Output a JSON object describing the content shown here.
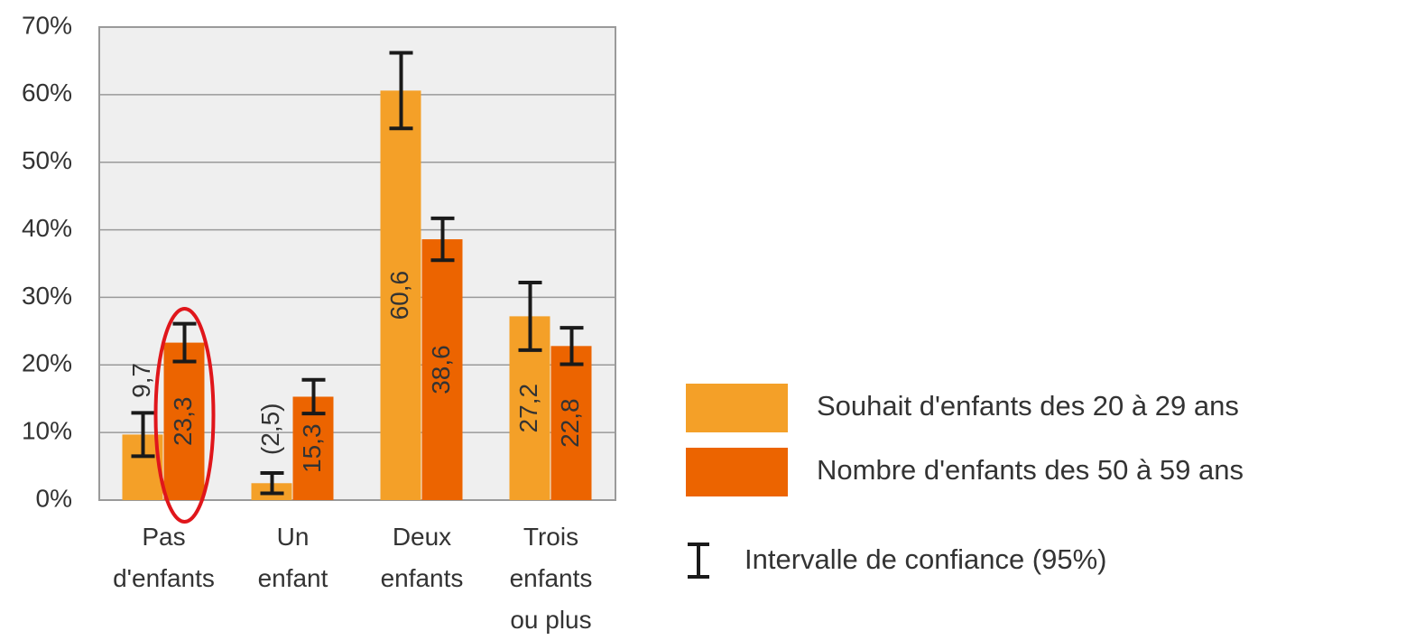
{
  "chart_data": {
    "type": "bar",
    "categories": [
      "Pas\nd'enfants",
      "Un\nenfant",
      "Deux\nenfants",
      "Trois\nenfants\nou plus"
    ],
    "series": [
      {
        "name": "Souhait d'enfants des 20 à 29 ans",
        "color": "#f4a028",
        "values": [
          9.7,
          2.5,
          60.6,
          27.2
        ],
        "value_labels": [
          "9,7",
          "(2,5)",
          "60,6",
          "27,2"
        ],
        "errors": [
          3.2,
          1.5,
          5.6,
          5.0
        ]
      },
      {
        "name": "Nombre d'enfants des 50 à 59 ans",
        "color": "#ec6400",
        "values": [
          23.3,
          15.3,
          38.6,
          22.8
        ],
        "value_labels": [
          "23,3",
          "15,3",
          "38,6",
          "22,8"
        ],
        "errors": [
          2.8,
          2.5,
          3.1,
          2.7
        ]
      }
    ],
    "error_legend": "Intervalle de confiance (95%)",
    "ylim": [
      0,
      70
    ],
    "yticks": [
      {
        "value": 0,
        "label": "0%"
      },
      {
        "value": 10,
        "label": "10%"
      },
      {
        "value": 20,
        "label": "20%"
      },
      {
        "value": 30,
        "label": "30%"
      },
      {
        "value": 40,
        "label": "40%"
      },
      {
        "value": 50,
        "label": "50%"
      },
      {
        "value": 60,
        "label": "60%"
      },
      {
        "value": 70,
        "label": "70%"
      }
    ],
    "grid": true
  }
}
